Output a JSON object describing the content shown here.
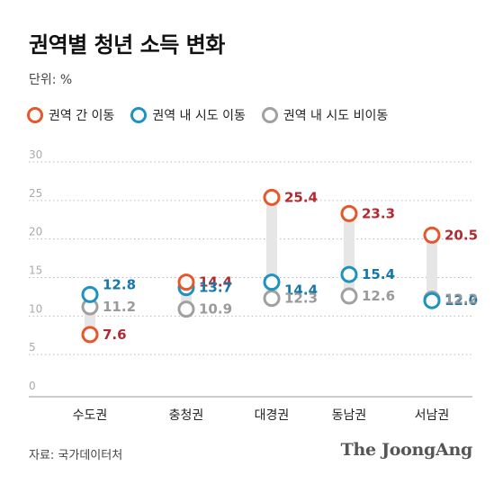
{
  "title": "권역별 청년 소득 변화",
  "unit_label": "단위: %",
  "source": "자료: 국가데이터처",
  "brand": "The JoongAng",
  "colors": {
    "inter_region": "#e8572b",
    "intra_move": "#1c93c0",
    "intra_stay": "#a0a0a0",
    "label_red": "#b02a30",
    "label_blue": "#1677a8",
    "label_gray": "#9a9a9a",
    "range_bar": "#e6e6e6",
    "grid": "#bbbbbb",
    "axis": "#999999"
  },
  "chart_data": {
    "type": "scatter",
    "title": "권역별 청년 소득 변화",
    "ylabel": "단위: %",
    "xlabel": "",
    "ylim": [
      0,
      30
    ],
    "yticks": [
      0,
      5,
      10,
      15,
      20,
      25,
      30
    ],
    "grid": true,
    "legend_position": "top-left",
    "categories": [
      "수도권",
      "충청권",
      "대경권",
      "동남권",
      "서남권"
    ],
    "series": [
      {
        "name": "권역 간 이동",
        "values": [
          7.6,
          14.4,
          25.4,
          23.3,
          20.5
        ]
      },
      {
        "name": "권역 내 시도 이동",
        "values": [
          12.8,
          13.7,
          14.4,
          15.4,
          12.0
        ]
      },
      {
        "name": "권역 내 시도 비이동",
        "values": [
          11.2,
          10.9,
          12.3,
          12.6,
          12.2
        ]
      }
    ]
  }
}
